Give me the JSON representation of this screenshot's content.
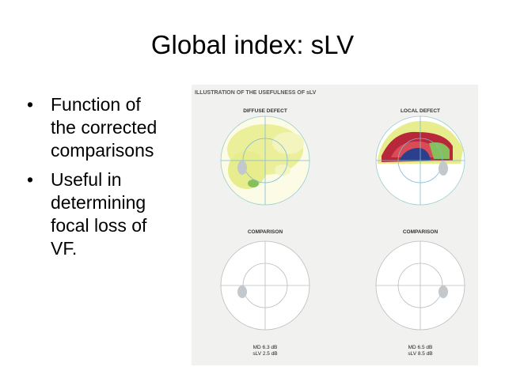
{
  "slide": {
    "title": "Global index: sLV",
    "bullets": [
      {
        "lines": [
          "Function of",
          "the corrected",
          "comparisons"
        ]
      },
      {
        "lines": [
          "Useful in",
          "determining",
          "focal loss of",
          "VF."
        ]
      }
    ]
  },
  "figure": {
    "heading": "ILLUSTRATION OF THE USEFULNESS OF sLV",
    "panels": {
      "diffuse": {
        "label": "DIFFUSE DEFECT"
      },
      "local": {
        "label": "LOCAL DEFECT"
      },
      "comparison_left": {
        "label": "COMPARISON",
        "md": "MD 6.3 dB",
        "slv": "sLV 2.5 dB"
      },
      "comparison_right": {
        "label": "COMPARISON",
        "md": "MD 6.5 dB",
        "slv": "sLV 8.5 dB"
      }
    },
    "colors": {
      "yellow": "#ecef9a",
      "yellow_light": "#f3f5bf",
      "green": "#86c05a",
      "red": "#b8283a",
      "blue": "#2b3f8c",
      "blindspot": "#c3c8cc"
    }
  }
}
